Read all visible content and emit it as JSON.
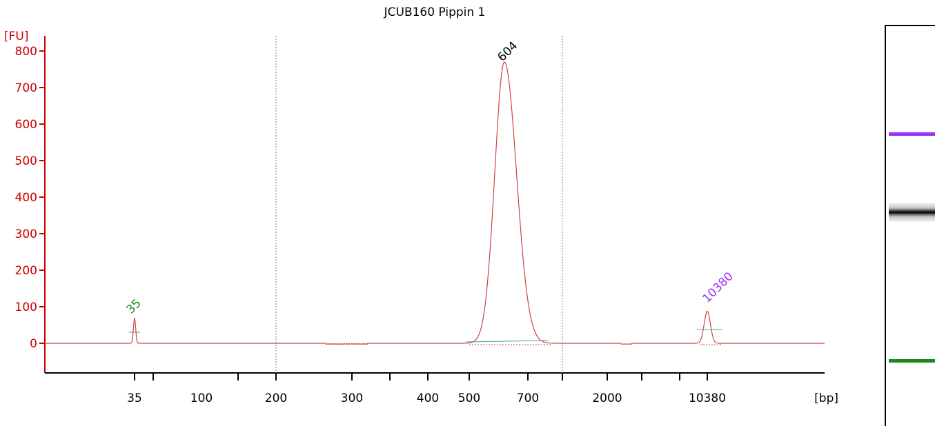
{
  "title": "JCUB160 Pippin 1",
  "chart_data": {
    "type": "line",
    "title": "JCUB160 Pippin 1",
    "y_unit": "[FU]",
    "x_unit": "[bp]",
    "ylim": [
      -80,
      850
    ],
    "y_ticks": [
      0,
      100,
      200,
      300,
      400,
      500,
      600,
      700,
      800
    ],
    "x_tick_labels": [
      "35",
      "100",
      "200",
      "300",
      "400",
      "500",
      "700",
      "2000",
      "10380"
    ],
    "grid": false,
    "series": [
      {
        "color": "#cc4444",
        "peaks": [
          {
            "label": "35",
            "height": 70,
            "label_color": "#1a8a1a"
          },
          {
            "label": "604",
            "height": 770,
            "label_color": "#000000"
          },
          {
            "label": "10380",
            "height": 88,
            "label_color": "#9b30ff"
          }
        ]
      }
    ],
    "region_markers": [
      "200",
      "1000"
    ],
    "colors": {
      "axis": "#cc0000",
      "trace": "#cc4444",
      "lower_marker": "#1a8a1a",
      "upper_marker": "#9b30ff",
      "baseline": "#4f9f8f"
    }
  },
  "gel": {
    "bands": [
      {
        "name": "upper-marker",
        "color": "#9b30ff"
      },
      {
        "name": "sample",
        "color": "#000000"
      },
      {
        "name": "lower-marker",
        "color": "#1a8a1a"
      }
    ]
  }
}
